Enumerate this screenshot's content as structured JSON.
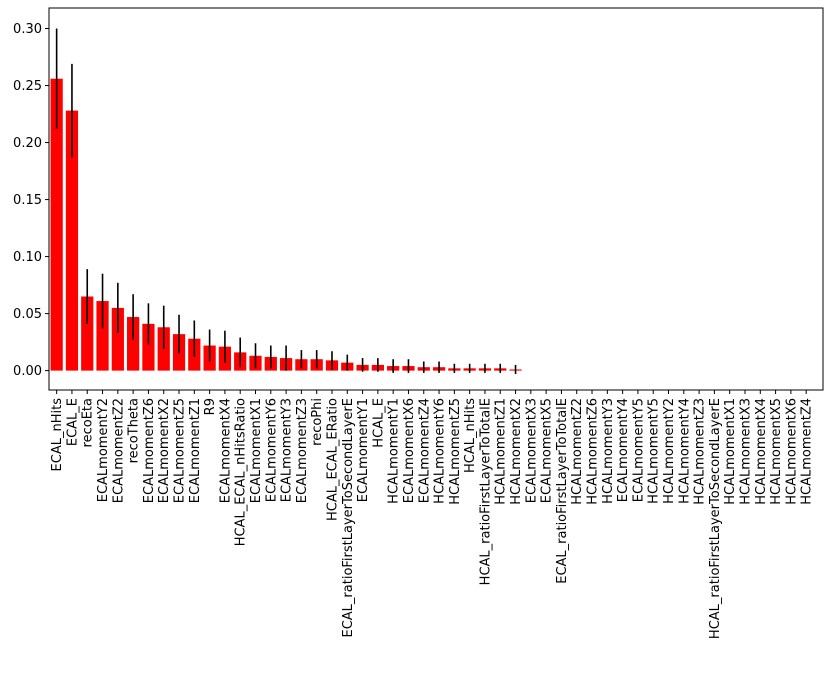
{
  "chart_data": {
    "type": "bar",
    "title": "",
    "xlabel": "",
    "ylabel": "",
    "ylim": [
      -0.017,
      0.318
    ],
    "yticks": [
      0.0,
      0.05,
      0.1,
      0.15,
      0.2,
      0.25,
      0.3
    ],
    "ytick_labels": [
      "0.00",
      "0.05",
      "0.10",
      "0.15",
      "0.20",
      "0.25",
      "0.30"
    ],
    "grid": false,
    "legend": "none",
    "bar_color": "#ff0000",
    "error_color": "#000000",
    "categories": [
      "ECAL_nHits",
      "ECAL_E",
      "recoEta",
      "ECALmomentY2",
      "ECALmomentZ2",
      "recoTheta",
      "ECALmomentZ6",
      "ECALmomentX2",
      "ECALmomentZ5",
      "ECALmomentZ1",
      "R9",
      "ECALmomentX4",
      "HCAL_ECAL_nHitsRatio",
      "ECALmomentX1",
      "ECALmomentY6",
      "ECALmomentY3",
      "ECALmomentZ3",
      "recoPhi",
      "HCAL_ECAL_ERatio",
      "ECAL_ratioFirstLayerToSecondLayerE",
      "ECALmomentY1",
      "HCAL_E",
      "HCALmomentY1",
      "ECALmomentX6",
      "ECALmomentZ4",
      "HCALmomentY6",
      "HCALmomentZ5",
      "HCAL_nHits",
      "HCAL_ratioFirstLayerToTotalE",
      "HCALmomentZ1",
      "HCALmomentX2",
      "ECALmomentX3",
      "ECALmomentX5",
      "ECAL_ratioFirstLayerToTotalE",
      "HCALmomentZ2",
      "HCALmomentZ6",
      "HCALmomentY3",
      "ECALmomentY4",
      "ECALmomentY5",
      "HCALmomentY5",
      "HCALmomentY2",
      "HCALmomentY4",
      "HCALmomentZ3",
      "HCAL_ratioFirstLayerToSecondLayerE",
      "HCALmomentX1",
      "HCALmomentX3",
      "HCALmomentX4",
      "HCALmomentX5",
      "HCALmomentX6",
      "HCALmomentZ4"
    ],
    "values": [
      0.256,
      0.228,
      0.065,
      0.061,
      0.055,
      0.047,
      0.041,
      0.038,
      0.032,
      0.028,
      0.022,
      0.021,
      0.016,
      0.013,
      0.012,
      0.011,
      0.01,
      0.01,
      0.009,
      0.007,
      0.005,
      0.005,
      0.004,
      0.004,
      0.003,
      0.003,
      0.002,
      0.002,
      0.002,
      0.002,
      0.001,
      0,
      0,
      0,
      0,
      0,
      0,
      0,
      0,
      0,
      0,
      0,
      0,
      0,
      0,
      0,
      0,
      0,
      0,
      0
    ],
    "errors": [
      0.044,
      0.041,
      0.024,
      0.024,
      0.022,
      0.02,
      0.018,
      0.019,
      0.017,
      0.016,
      0.014,
      0.014,
      0.013,
      0.011,
      0.01,
      0.011,
      0.008,
      0.008,
      0.008,
      0.007,
      0.006,
      0.006,
      0.006,
      0.006,
      0.005,
      0.005,
      0.004,
      0.004,
      0.004,
      0.004,
      0.004,
      0,
      0,
      0,
      0,
      0,
      0,
      0,
      0,
      0,
      0,
      0,
      0,
      0,
      0,
      0,
      0,
      0,
      0,
      0
    ]
  }
}
